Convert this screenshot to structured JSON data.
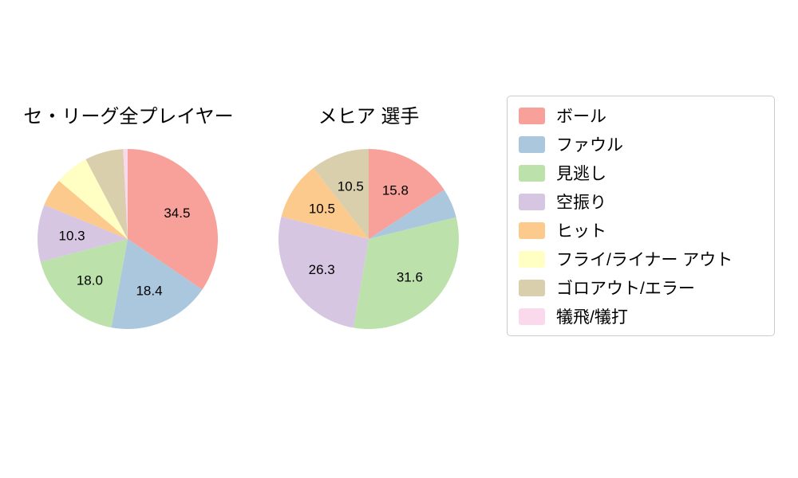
{
  "chart_data": {
    "type": "pie",
    "start_angle_deg": 0,
    "direction": "clockwise",
    "label_min_pct": 10,
    "colors": [
      "#f8a19a",
      "#aac7de",
      "#bce1ab",
      "#d6c6e1",
      "#fcca8d",
      "#ffffc3",
      "#d9cfad",
      "#fbd9ec"
    ],
    "categories": [
      "ボール",
      "ファウル",
      "見逃し",
      "空振り",
      "ヒット",
      "フライ/ライナー アウト",
      "ゴロアウト/エラー",
      "犠飛/犠打"
    ],
    "charts": [
      {
        "title": "セ・リーグ全プレイヤー",
        "values": [
          34.5,
          18.4,
          18.0,
          10.3,
          5.0,
          6.1,
          6.9,
          0.8
        ],
        "shown_labels": [
          "34.5",
          "18.4",
          "18.0",
          "10.3"
        ]
      },
      {
        "title": "メヒア 選手",
        "values": [
          15.8,
          5.3,
          31.6,
          26.3,
          10.5,
          0,
          10.5,
          0
        ],
        "shown_labels": [
          "15.8",
          "31.6",
          "26.3",
          "10.5",
          "10.5"
        ]
      }
    ],
    "legend": {
      "position": "right",
      "items": [
        "ボール",
        "ファウル",
        "見逃し",
        "空振り",
        "ヒット",
        "フライ/ライナー アウト",
        "ゴロアウト/エラー",
        "犠飛/犠打"
      ]
    }
  }
}
